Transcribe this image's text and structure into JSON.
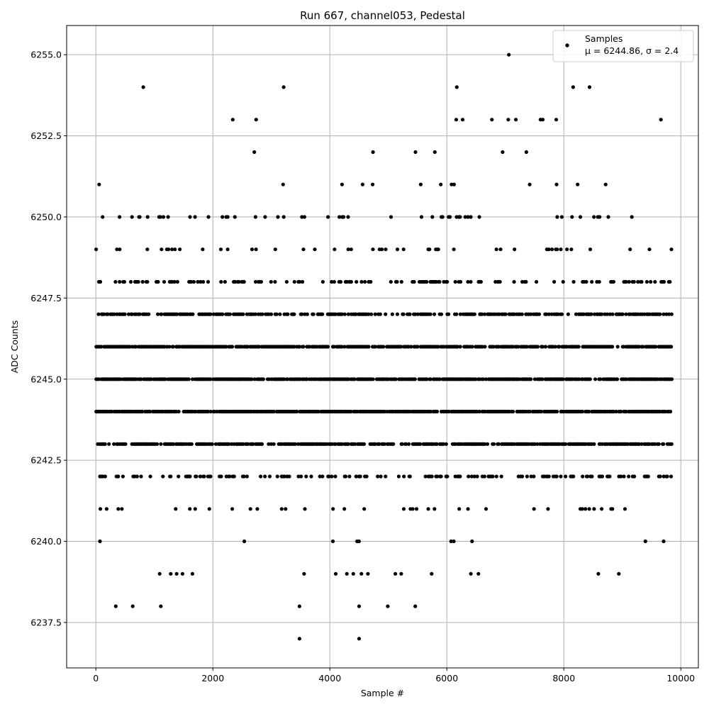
{
  "chart_data": {
    "type": "scatter",
    "title": "Run 667, channel053, Pedestal",
    "xlabel": "Sample #",
    "ylabel": "ADC Counts",
    "xlim": [
      -500,
      10300
    ],
    "ylim": [
      6236.1,
      6255.9
    ],
    "x_ticks": [
      0,
      2000,
      4000,
      6000,
      8000,
      10000
    ],
    "x_tick_labels": [
      "0",
      "2000",
      "4000",
      "6000",
      "8000",
      "10000"
    ],
    "y_ticks": [
      6237.5,
      6240.0,
      6242.5,
      6245.0,
      6247.5,
      6250.0,
      6252.5,
      6255.0
    ],
    "y_tick_labels": [
      "6237.5",
      "6240.0",
      "6242.5",
      "6245.0",
      "6247.5",
      "6250.0",
      "6252.5",
      "6255.0"
    ],
    "grid": true,
    "legend": {
      "placement": "upper right",
      "entries": [
        "Samples",
        "μ = 6244.86, σ = 2.4"
      ]
    },
    "marker_color": "#000000",
    "series": [
      {
        "name": "Samples",
        "x_range": [
          0,
          9850
        ],
        "sample_count": 9850,
        "mean": 6244.86,
        "sigma": 2.4,
        "level_occupancy": [
          {
            "y": 6237,
            "x": [
              3480,
              4500
            ]
          },
          {
            "y": 6238,
            "x": [
              340,
              630,
              1110,
              3480,
              4500,
              4990,
              5460
            ]
          },
          {
            "y": 6239,
            "x": [
              1090,
              1280,
              1380,
              1480,
              1650,
              3560,
              4100,
              4290,
              4400,
              4540,
              4650,
              5120,
              5220,
              5740,
              6410,
              6540,
              8590,
              8940
            ]
          },
          {
            "y": 6253,
            "x": [
              2340,
              2740,
              6160,
              6270,
              6770,
              7050,
              7180,
              7600,
              7640,
              7870,
              9660
            ]
          },
          {
            "y": 6254,
            "x": [
              810,
              3210,
              6170,
              8160,
              8440
            ]
          },
          {
            "y": 6255,
            "x": [
              7060
            ]
          }
        ],
        "dense_levels": [
          {
            "y": 6240,
            "density": 0.02
          },
          {
            "y": 6241,
            "density": 0.1
          },
          {
            "y": 6242,
            "density": 0.38
          },
          {
            "y": 6243,
            "density": 0.8
          },
          {
            "y": 6244,
            "density": 0.9
          },
          {
            "y": 6245,
            "density": 0.9
          },
          {
            "y": 6246,
            "density": 0.85
          },
          {
            "y": 6247,
            "density": 0.7
          },
          {
            "y": 6248,
            "density": 0.32
          },
          {
            "y": 6249,
            "density": 0.15
          },
          {
            "y": 6250,
            "density": 0.1
          },
          {
            "y": 6251,
            "density": 0.025
          },
          {
            "y": 6252,
            "density": 0.022
          }
        ]
      }
    ]
  }
}
